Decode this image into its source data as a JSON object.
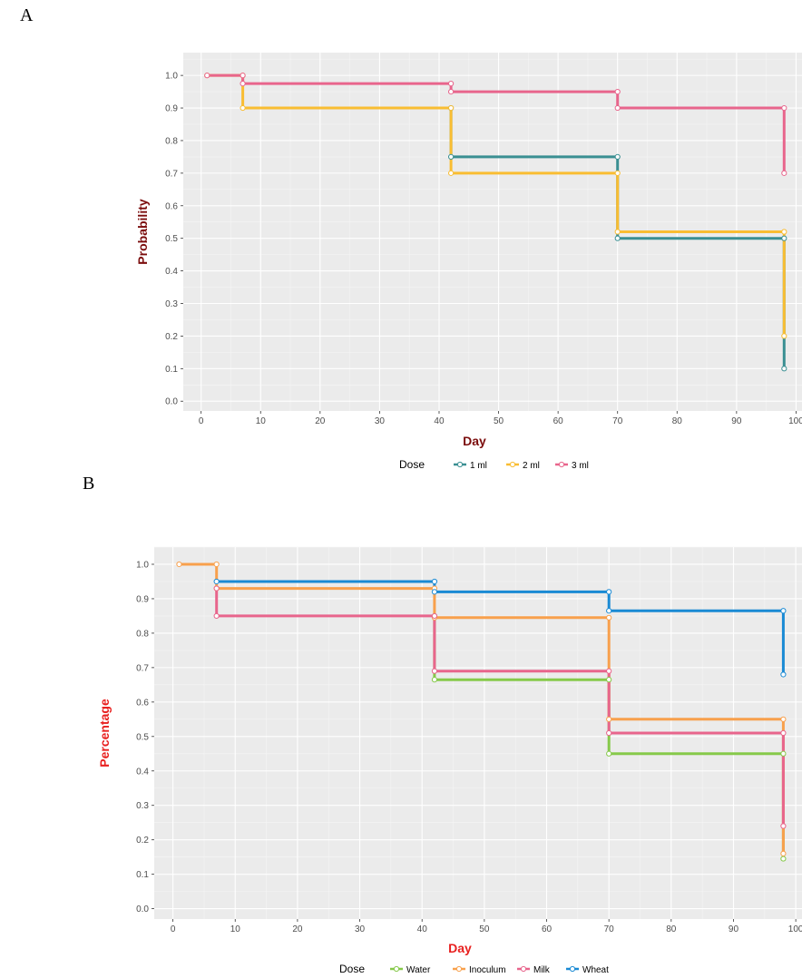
{
  "panels": {
    "a": "A",
    "b": "B"
  },
  "chart_data": [
    {
      "type": "line",
      "subtype": "step",
      "panel": "A",
      "xlabel": "Day",
      "ylabel": "Probability",
      "xlim": [
        -3,
        101
      ],
      "ylim": [
        -0.03,
        1.07
      ],
      "xticks": [
        "0",
        "10",
        "20",
        "30",
        "40",
        "50",
        "60",
        "70",
        "80",
        "90",
        "100"
      ],
      "yticks": [
        "0.0",
        "0.1",
        "0.2",
        "0.3",
        "0.4",
        "0.5",
        "0.6",
        "0.7",
        "0.8",
        "0.9",
        "1.0"
      ],
      "legend_title": "Dose",
      "legend_position": "bottom",
      "label_color": "#7b0c0c",
      "series": [
        {
          "name": "1 ml",
          "color": "#3a8f92",
          "points": [
            [
              42,
              0.9
            ],
            [
              42,
              0.75
            ],
            [
              70,
              0.75
            ],
            [
              70,
              0.5
            ],
            [
              98,
              0.5
            ],
            [
              98,
              0.1
            ]
          ]
        },
        {
          "name": "2 ml",
          "color": "#f9bd32",
          "points": [
            [
              1,
              1.0
            ],
            [
              7,
              1.0
            ],
            [
              7,
              0.9
            ],
            [
              42,
              0.9
            ],
            [
              42,
              0.7
            ],
            [
              70,
              0.7
            ],
            [
              70,
              0.52
            ],
            [
              98,
              0.52
            ],
            [
              98,
              0.2
            ]
          ]
        },
        {
          "name": "3 ml",
          "color": "#e8658c",
          "points": [
            [
              1,
              1.0
            ],
            [
              7,
              1.0
            ],
            [
              7,
              0.975
            ],
            [
              42,
              0.975
            ],
            [
              42,
              0.95
            ],
            [
              70,
              0.95
            ],
            [
              70,
              0.9
            ],
            [
              98,
              0.9
            ],
            [
              98,
              0.7
            ]
          ]
        }
      ]
    },
    {
      "type": "line",
      "subtype": "step",
      "panel": "B",
      "xlabel": "Day",
      "ylabel": "Percentage",
      "xlim": [
        -3,
        101
      ],
      "ylim": [
        -0.03,
        1.05
      ],
      "xticks": [
        "0",
        "10",
        "20",
        "30",
        "40",
        "50",
        "60",
        "70",
        "80",
        "90",
        "100"
      ],
      "yticks": [
        "0.0",
        "0.1",
        "0.2",
        "0.3",
        "0.4",
        "0.5",
        "0.6",
        "0.7",
        "0.8",
        "0.9",
        "1.0"
      ],
      "legend_title": "Dose",
      "legend_position": "bottom",
      "label_color": "#e8201f",
      "series": [
        {
          "name": "Water",
          "color": "#86c94a",
          "points": [
            [
              42,
              0.85
            ],
            [
              42,
              0.665
            ],
            [
              70,
              0.665
            ],
            [
              70,
              0.45
            ],
            [
              98,
              0.45
            ],
            [
              98,
              0.145
            ]
          ]
        },
        {
          "name": "Inoculum",
          "color": "#f8a04c",
          "points": [
            [
              1,
              1.0
            ],
            [
              7,
              1.0
            ],
            [
              7,
              0.93
            ],
            [
              42,
              0.93
            ],
            [
              42,
              0.845
            ],
            [
              70,
              0.845
            ],
            [
              70,
              0.55
            ],
            [
              98,
              0.55
            ],
            [
              98,
              0.16
            ]
          ]
        },
        {
          "name": "Milk",
          "color": "#e8658c",
          "points": [
            [
              7,
              0.93
            ],
            [
              7,
              0.85
            ],
            [
              42,
              0.85
            ],
            [
              42,
              0.69
            ],
            [
              70,
              0.69
            ],
            [
              70,
              0.51
            ],
            [
              98,
              0.51
            ],
            [
              98,
              0.24
            ]
          ]
        },
        {
          "name": "Wheat",
          "color": "#1a8ad4",
          "points": [
            [
              7,
              0.95
            ],
            [
              42,
              0.95
            ],
            [
              42,
              0.92
            ],
            [
              70,
              0.92
            ],
            [
              70,
              0.865
            ],
            [
              98,
              0.865
            ],
            [
              98,
              0.68
            ]
          ]
        }
      ]
    }
  ]
}
